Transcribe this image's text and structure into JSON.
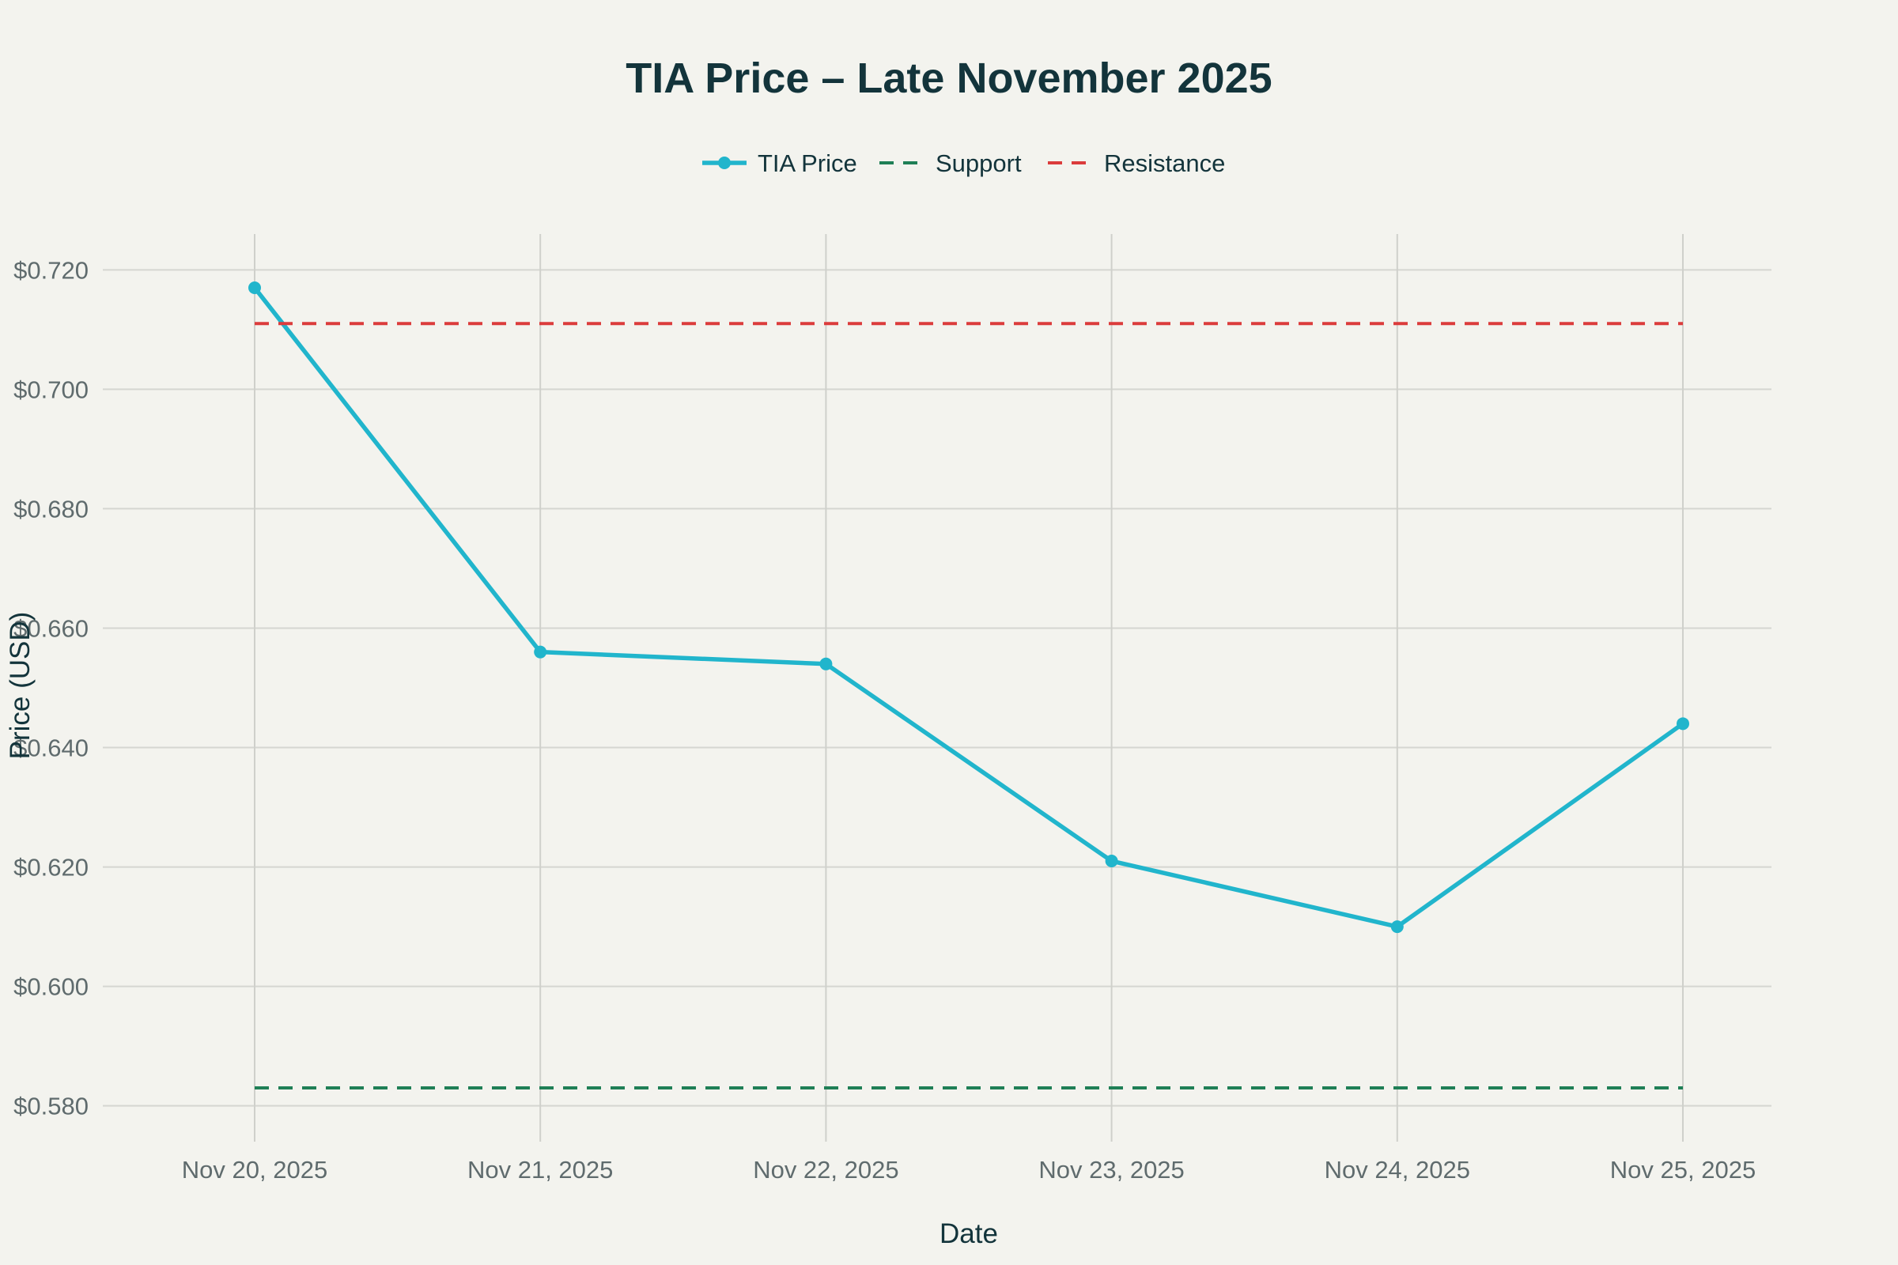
{
  "chart_data": {
    "type": "line",
    "title": "TIA Price – Late November 2025",
    "xlabel": "Date",
    "ylabel": "Price (USD)",
    "categories": [
      "Nov 20, 2025",
      "Nov 21, 2025",
      "Nov 22, 2025",
      "Nov 23, 2025",
      "Nov 24, 2025",
      "Nov 25, 2025"
    ],
    "ylim": [
      0.574,
      0.726
    ],
    "yticks": [
      0.58,
      0.6,
      0.62,
      0.64,
      0.66,
      0.68,
      0.7,
      0.72
    ],
    "ytick_labels": [
      "$0.580",
      "$0.600",
      "$0.620",
      "$0.640",
      "$0.660",
      "$0.680",
      "$0.700",
      "$0.720"
    ],
    "grid": true,
    "legend_position": "top-center",
    "series": [
      {
        "name": "TIA Price",
        "style": "line+markers",
        "color": "#21b5cc",
        "values": [
          0.717,
          0.656,
          0.654,
          0.621,
          0.61,
          0.644
        ]
      },
      {
        "name": "Support",
        "style": "dashed",
        "color": "#1f7f56",
        "values": [
          0.583,
          0.583,
          0.583,
          0.583,
          0.583,
          0.583
        ]
      },
      {
        "name": "Resistance",
        "style": "dashed",
        "color": "#db3c3c",
        "values": [
          0.711,
          0.711,
          0.711,
          0.711,
          0.711,
          0.711
        ]
      }
    ]
  }
}
